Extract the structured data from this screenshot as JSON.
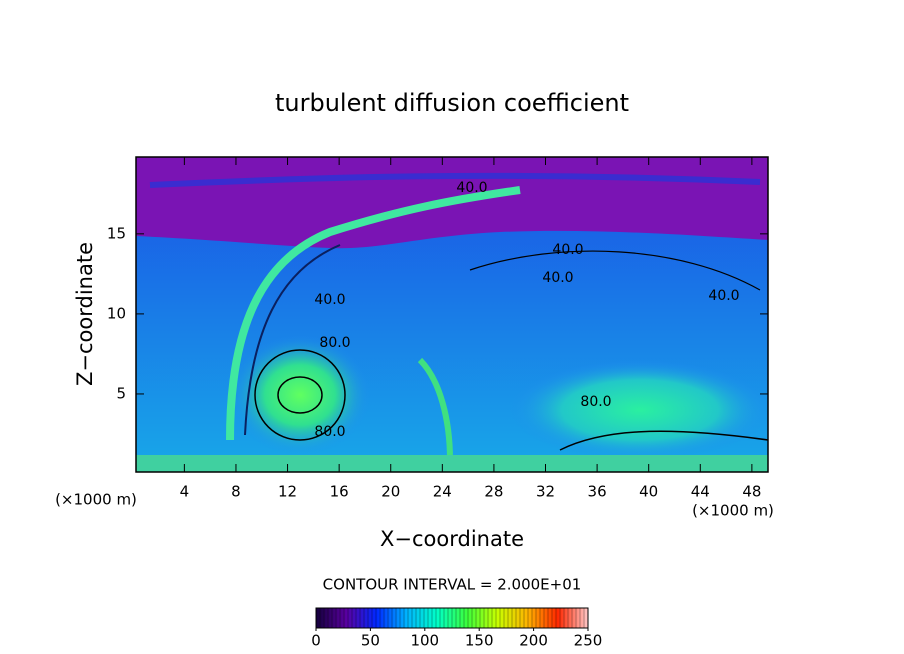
{
  "chart_data": {
    "type": "contour",
    "title": "turbulent diffusion coefficient",
    "x_label": "X−coordinate",
    "y_label": "Z−coordinate",
    "x_unit": "(×1000 m)",
    "y_unit": "(×1000 m)",
    "xlim": [
      0.25,
      49.25
    ],
    "xticks": [
      4,
      8,
      12,
      16,
      20,
      24,
      28,
      32,
      36,
      40,
      44,
      48
    ],
    "ylim": [
      0.125,
      19.8
    ],
    "yticks": [
      5,
      10,
      15
    ],
    "contour_note": "CONTOUR INTERVAL = 2.000E+01",
    "contour_labels": [
      {
        "value": 40,
        "label": "40.0"
      },
      {
        "value": 40,
        "label": "40.0"
      },
      {
        "value": 40,
        "label": "40.0"
      },
      {
        "value": 40,
        "label": "40.0"
      },
      {
        "value": 40,
        "label": "40.0"
      },
      {
        "value": 80,
        "label": "80.0"
      },
      {
        "value": 80,
        "label": "80.0"
      },
      {
        "value": 80,
        "label": "80.0"
      }
    ],
    "colorbar": {
      "range": [
        0,
        250
      ],
      "ticks": [
        0,
        50,
        100,
        150,
        200,
        250
      ],
      "colors": [
        "#14003c",
        "#5a00a0",
        "#0028ff",
        "#00b4ff",
        "#00ffc8",
        "#3cff3c",
        "#c8ff00",
        "#ffb400",
        "#ff2800",
        "#ffc8c8"
      ]
    }
  }
}
